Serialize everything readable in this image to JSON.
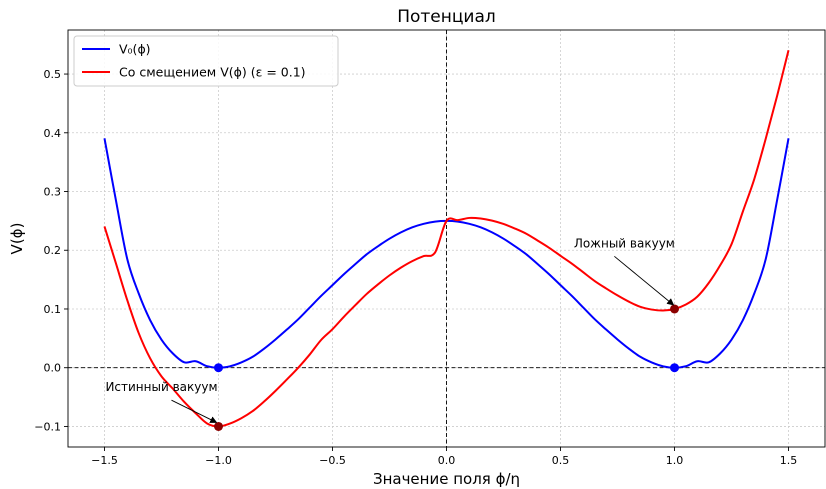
{
  "chart_data": {
    "type": "line",
    "title": "Потенциал",
    "xlabel": "Значение поля ϕ/η",
    "ylabel": "V(ϕ)",
    "xlim": [
      -1.66,
      1.66
    ],
    "ylim": [
      -0.135,
      0.575
    ],
    "xticks": [
      -1.5,
      -1.0,
      -0.5,
      0.0,
      0.5,
      1.0,
      1.5
    ],
    "xtick_labels": [
      "−1.5",
      "−1.0",
      "−0.5",
      "0.0",
      "0.5",
      "1.0",
      "1.5"
    ],
    "yticks": [
      -0.1,
      0.0,
      0.1,
      0.2,
      0.3,
      0.4,
      0.5
    ],
    "ytick_labels": [
      "−0.1",
      "0.0",
      "0.1",
      "0.2",
      "0.3",
      "0.4",
      "0.5"
    ],
    "grid": true,
    "legend_position": "top-left",
    "reference_lines": {
      "horizontal_y": 0.0,
      "vertical_x": 0.0
    },
    "series": [
      {
        "name": "V₀(ϕ)",
        "color": "#0000ff",
        "x": [
          -1.5,
          -1.45,
          -1.4,
          -1.35,
          -1.3,
          -1.25,
          -1.2,
          -1.15,
          -1.1,
          -1.05,
          -1.0,
          -0.95,
          -0.9,
          -0.85,
          -0.8,
          -0.75,
          -0.7,
          -0.65,
          -0.6,
          -0.55,
          -0.5,
          -0.45,
          -0.4,
          -0.35,
          -0.3,
          -0.25,
          -0.2,
          -0.15,
          -0.1,
          -0.05,
          0.0,
          0.05,
          0.1,
          0.15,
          0.2,
          0.25,
          0.3,
          0.35,
          0.4,
          0.45,
          0.5,
          0.55,
          0.6,
          0.65,
          0.7,
          0.75,
          0.8,
          0.85,
          0.9,
          0.95,
          1.0,
          1.05,
          1.1,
          1.15,
          1.2,
          1.25,
          1.3,
          1.35,
          1.4,
          1.45,
          1.5
        ],
        "values": [
          0.3906,
          0.2854,
          0.1849,
          0.1265,
          0.0812,
          0.0478,
          0.0242,
          0.0092,
          0.011,
          0.0026,
          0.0,
          0.0024,
          0.009,
          0.0186,
          0.0324,
          0.0481,
          0.065,
          0.0826,
          0.1024,
          0.1222,
          0.1406,
          0.1592,
          0.1764,
          0.1931,
          0.207,
          0.2197,
          0.2304,
          0.239,
          0.245,
          0.2488,
          0.25,
          0.2488,
          0.245,
          0.239,
          0.2304,
          0.2197,
          0.207,
          0.1931,
          0.1764,
          0.1592,
          0.1406,
          0.1222,
          0.1024,
          0.0826,
          0.065,
          0.0481,
          0.0324,
          0.0186,
          0.009,
          0.0024,
          0.0,
          0.0026,
          0.011,
          0.0092,
          0.0242,
          0.0478,
          0.0812,
          0.1265,
          0.1849,
          0.2854,
          0.3906
        ]
      },
      {
        "name": "Со смещением V(ϕ) (ε = 0.1)",
        "color": "#ff0000",
        "x": [
          -1.5,
          -1.45,
          -1.4,
          -1.35,
          -1.3,
          -1.25,
          -1.2,
          -1.15,
          -1.1,
          -1.05,
          -1.0,
          -0.95,
          -0.9,
          -0.85,
          -0.8,
          -0.75,
          -0.7,
          -0.65,
          -0.6,
          -0.55,
          -0.5,
          -0.45,
          -0.4,
          -0.35,
          -0.3,
          -0.25,
          -0.2,
          -0.15,
          -0.1,
          -0.05,
          0.0,
          0.05,
          0.1,
          0.15,
          0.2,
          0.25,
          0.3,
          0.35,
          0.4,
          0.45,
          0.5,
          0.55,
          0.6,
          0.65,
          0.7,
          0.75,
          0.8,
          0.85,
          0.9,
          0.95,
          1.0,
          1.05,
          1.1,
          1.15,
          1.2,
          1.25,
          1.3,
          1.35,
          1.4,
          1.45,
          1.5
        ],
        "values": [
          0.2406,
          0.1779,
          0.1149,
          0.059,
          0.0162,
          -0.0147,
          -0.0358,
          -0.0583,
          -0.0775,
          -0.0949,
          -0.1,
          -0.0951,
          -0.086,
          -0.0739,
          -0.0576,
          -0.0394,
          -0.02,
          0.0001,
          0.0224,
          0.0472,
          0.0656,
          0.0867,
          0.1064,
          0.1256,
          0.142,
          0.1572,
          0.1704,
          0.1815,
          0.19,
          0.1963,
          0.25,
          0.2513,
          0.255,
          0.254,
          0.2504,
          0.2447,
          0.237,
          0.2281,
          0.2164,
          0.2042,
          0.1906,
          0.1772,
          0.1624,
          0.1476,
          0.135,
          0.1231,
          0.1124,
          0.1036,
          0.099,
          0.0974,
          0.1,
          0.1076,
          0.121,
          0.1442,
          0.1742,
          0.2103,
          0.2662,
          0.3215,
          0.3899,
          0.4629,
          0.5406
        ]
      }
    ],
    "markers": [
      {
        "x": -1.0,
        "y": 0.0,
        "color": "#0000ff"
      },
      {
        "x": 1.0,
        "y": 0.0,
        "color": "#0000ff"
      },
      {
        "x": -1.0,
        "y": -0.1,
        "color": "#8b0000"
      },
      {
        "x": 1.0,
        "y": 0.1,
        "color": "#8b0000"
      }
    ],
    "annotations": [
      {
        "text": "Истинный вакуум",
        "target": [
          -1.0,
          -0.1
        ],
        "text_at": [
          -1.25,
          -0.04
        ]
      },
      {
        "text": "Ложный вакуум",
        "target": [
          1.0,
          0.1
        ],
        "text_at": [
          0.78,
          0.205
        ]
      }
    ]
  }
}
